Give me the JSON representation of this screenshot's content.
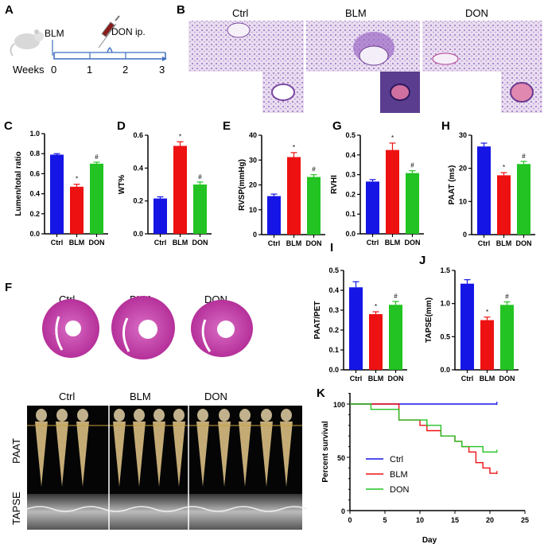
{
  "panel_labels": {
    "A": "A",
    "B": "B",
    "C": "C",
    "D": "D",
    "E": "E",
    "F": "F",
    "G": "G",
    "H": "H",
    "I": "I",
    "J": "J",
    "K": "K"
  },
  "groups": [
    "Ctrl",
    "BLM",
    "DON"
  ],
  "colors": {
    "Ctrl": "#1515e6",
    "BLM": "#ee1111",
    "DON": "#22c322",
    "axis": "#000000",
    "timeline": "#3f6fc0",
    "tissue": "#c84ea8"
  },
  "panelA": {
    "injury": "BLM",
    "treatment": "DON ip.",
    "axis_label": "Weeks",
    "weeks": [
      "0",
      "1",
      "2",
      "3"
    ]
  },
  "panelF": {
    "doppler_label": "PAAT",
    "mmode_label": "TAPSE"
  },
  "chart_data": [
    {
      "id": "C",
      "type": "bar",
      "ylabel": "Lumen/total ratio",
      "ylim": [
        0,
        1.0
      ],
      "yticks": [
        "0.0",
        "0.2",
        "0.4",
        "0.6",
        "0.8",
        "1.0"
      ],
      "categories": [
        "Ctrl",
        "BLM",
        "DON"
      ],
      "values": [
        0.79,
        0.47,
        0.7
      ],
      "errors": [
        0.01,
        0.025,
        0.015
      ],
      "annotations": [
        "",
        "*",
        "#"
      ]
    },
    {
      "id": "D",
      "type": "bar",
      "ylabel": "WT%",
      "ylim": [
        0,
        0.6
      ],
      "yticks": [
        "0.0",
        "0.2",
        "0.4",
        "0.6"
      ],
      "categories": [
        "Ctrl",
        "BLM",
        "DON"
      ],
      "values": [
        0.215,
        0.535,
        0.3
      ],
      "errors": [
        0.01,
        0.025,
        0.015
      ],
      "annotations": [
        "",
        "*",
        "#"
      ]
    },
    {
      "id": "E",
      "type": "bar",
      "ylabel": "RVSP(mmHg)",
      "ylim": [
        0,
        40
      ],
      "yticks": [
        "0",
        "10",
        "20",
        "30",
        "40"
      ],
      "categories": [
        "Ctrl",
        "BLM",
        "DON"
      ],
      "values": [
        15.5,
        31.2,
        23.2
      ],
      "errors": [
        0.8,
        1.8,
        0.9
      ],
      "annotations": [
        "",
        "*",
        "#"
      ]
    },
    {
      "id": "G",
      "type": "bar",
      "ylabel": "RVHI",
      "ylim": [
        0,
        0.5
      ],
      "yticks": [
        "0.0",
        "0.1",
        "0.2",
        "0.3",
        "0.4",
        "0.5"
      ],
      "categories": [
        "Ctrl",
        "BLM",
        "DON"
      ],
      "values": [
        0.265,
        0.425,
        0.308
      ],
      "errors": [
        0.01,
        0.035,
        0.012
      ],
      "annotations": [
        "",
        "*",
        "#"
      ]
    },
    {
      "id": "H",
      "type": "bar",
      "ylabel": "PAAT (ms)",
      "ylim": [
        0,
        30
      ],
      "yticks": [
        "0",
        "10",
        "20",
        "30"
      ],
      "categories": [
        "Ctrl",
        "BLM",
        "DON"
      ],
      "values": [
        26.6,
        17.9,
        21.3
      ],
      "errors": [
        1.0,
        0.8,
        0.8
      ],
      "annotations": [
        "",
        "*",
        "#"
      ]
    },
    {
      "id": "I",
      "type": "bar",
      "ylabel": "PAAT/PET",
      "ylim": [
        0,
        0.5
      ],
      "yticks": [
        "0.0",
        "0.1",
        "0.2",
        "0.3",
        "0.4",
        "0.5"
      ],
      "categories": [
        "Ctrl",
        "BLM",
        "DON"
      ],
      "values": [
        0.415,
        0.28,
        0.327
      ],
      "errors": [
        0.028,
        0.012,
        0.017
      ],
      "annotations": [
        "",
        "*",
        "#"
      ]
    },
    {
      "id": "J",
      "type": "bar",
      "ylabel": "TAPSE(mm)",
      "ylim": [
        0,
        1.5
      ],
      "yticks": [
        "0.0",
        "0.5",
        "1.0",
        "1.5"
      ],
      "categories": [
        "Ctrl",
        "BLM",
        "DON"
      ],
      "values": [
        1.3,
        0.75,
        0.98
      ],
      "errors": [
        0.06,
        0.045,
        0.045
      ],
      "annotations": [
        "",
        "*",
        "#"
      ]
    },
    {
      "id": "K",
      "type": "line",
      "xlabel": "Day",
      "ylabel": "Percent survival",
      "xlim": [
        0,
        25
      ],
      "ylim": [
        0,
        100
      ],
      "xticks": [
        "0",
        "5",
        "10",
        "15",
        "20",
        "25"
      ],
      "yticks": [
        "0",
        "50",
        "100"
      ],
      "legend_position": "center-left",
      "series": [
        {
          "name": "Ctrl",
          "steps": [
            [
              0,
              100
            ],
            [
              21,
              100
            ]
          ]
        },
        {
          "name": "BLM",
          "steps": [
            [
              0,
              100
            ],
            [
              7,
              85
            ],
            [
              10,
              80
            ],
            [
              11,
              75
            ],
            [
              13,
              70
            ],
            [
              15,
              65
            ],
            [
              16,
              60
            ],
            [
              17,
              55
            ],
            [
              18,
              45
            ],
            [
              19,
              40
            ],
            [
              20,
              35
            ],
            [
              21,
              35
            ]
          ]
        },
        {
          "name": "DON",
          "steps": [
            [
              0,
              100
            ],
            [
              3,
              95
            ],
            [
              7,
              85
            ],
            [
              11,
              80
            ],
            [
              13,
              70
            ],
            [
              15,
              65
            ],
            [
              16,
              60
            ],
            [
              19,
              55
            ],
            [
              21,
              55
            ]
          ]
        }
      ]
    }
  ]
}
